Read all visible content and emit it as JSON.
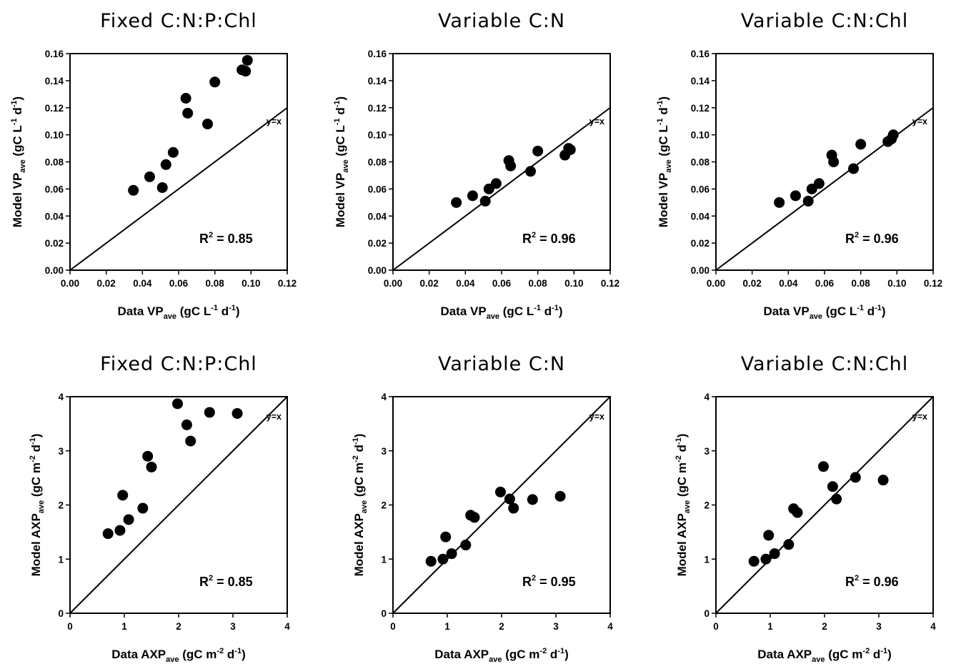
{
  "chart_data": [
    {
      "type": "scatter",
      "title": "Fixed C:N:P:Chl",
      "xlabel": {
        "main": "Data VP",
        "sub": "ave",
        "unit_pre": "(gC L",
        "sup1": "-1",
        "unit_mid": " d",
        "sup2": "-1",
        "unit_post": ")"
      },
      "ylabel": {
        "main": "Model VP",
        "sub": "ave",
        "unit_pre": "(gC L",
        "sup1": "-1",
        "unit_mid": " d",
        "sup2": "-1",
        "unit_post": ")"
      },
      "xlim": [
        0,
        0.12
      ],
      "ylim": [
        0,
        0.16
      ],
      "xticks": [
        "0.00",
        "0.02",
        "0.04",
        "0.06",
        "0.08",
        "0.10",
        "0.12"
      ],
      "yticks": [
        "0.00",
        "0.02",
        "0.04",
        "0.06",
        "0.08",
        "0.10",
        "0.12",
        "0.14",
        "0.16"
      ],
      "r2_label": "R",
      "r2_sup": "2",
      "r2_value": " = 0.85",
      "line_label": "y=x",
      "points": [
        [
          0.035,
          0.059
        ],
        [
          0.044,
          0.069
        ],
        [
          0.051,
          0.061
        ],
        [
          0.053,
          0.078
        ],
        [
          0.057,
          0.087
        ],
        [
          0.064,
          0.127
        ],
        [
          0.065,
          0.116
        ],
        [
          0.076,
          0.108
        ],
        [
          0.08,
          0.139
        ],
        [
          0.095,
          0.148
        ],
        [
          0.097,
          0.147
        ],
        [
          0.098,
          0.155
        ]
      ]
    },
    {
      "type": "scatter",
      "title": "Variable C:N",
      "xlabel": {
        "main": "Data VP",
        "sub": "ave",
        "unit_pre": "(gC L",
        "sup1": "-1",
        "unit_mid": " d",
        "sup2": "-1",
        "unit_post": ")"
      },
      "ylabel": {
        "main": "Model VP",
        "sub": "ave",
        "unit_pre": "(gC L",
        "sup1": "-1",
        "unit_mid": " d",
        "sup2": "-1",
        "unit_post": ")"
      },
      "xlim": [
        0,
        0.12
      ],
      "ylim": [
        0,
        0.16
      ],
      "xticks": [
        "0.00",
        "0.02",
        "0.04",
        "0.06",
        "0.08",
        "0.10",
        "0.12"
      ],
      "yticks": [
        "0.00",
        "0.02",
        "0.04",
        "0.06",
        "0.08",
        "0.10",
        "0.12",
        "0.14",
        "0.16"
      ],
      "r2_label": "R",
      "r2_sup": "2",
      "r2_value": " = 0.96",
      "line_label": "y=x",
      "points": [
        [
          0.035,
          0.05
        ],
        [
          0.044,
          0.055
        ],
        [
          0.051,
          0.051
        ],
        [
          0.053,
          0.06
        ],
        [
          0.057,
          0.064
        ],
        [
          0.064,
          0.081
        ],
        [
          0.065,
          0.077
        ],
        [
          0.076,
          0.073
        ],
        [
          0.08,
          0.088
        ],
        [
          0.095,
          0.085
        ],
        [
          0.097,
          0.09
        ],
        [
          0.098,
          0.089
        ]
      ]
    },
    {
      "type": "scatter",
      "title": "Variable C:N:Chl",
      "xlabel": {
        "main": "Data VP",
        "sub": "ave",
        "unit_pre": "(gC L",
        "sup1": "-1",
        "unit_mid": " d",
        "sup2": "-1",
        "unit_post": ")"
      },
      "ylabel": {
        "main": "Model VP",
        "sub": "ave",
        "unit_pre": "(gC L",
        "sup1": "-1",
        "unit_mid": " d",
        "sup2": "-1",
        "unit_post": ")"
      },
      "xlim": [
        0,
        0.12
      ],
      "ylim": [
        0,
        0.16
      ],
      "xticks": [
        "0.00",
        "0.02",
        "0.04",
        "0.06",
        "0.08",
        "0.10",
        "0.12"
      ],
      "yticks": [
        "0.00",
        "0.02",
        "0.04",
        "0.06",
        "0.08",
        "0.10",
        "0.12",
        "0.14",
        "0.16"
      ],
      "r2_label": "R",
      "r2_sup": "2",
      "r2_value": " = 0.96",
      "line_label": "y=x",
      "points": [
        [
          0.035,
          0.05
        ],
        [
          0.044,
          0.055
        ],
        [
          0.051,
          0.051
        ],
        [
          0.053,
          0.06
        ],
        [
          0.057,
          0.064
        ],
        [
          0.064,
          0.085
        ],
        [
          0.065,
          0.08
        ],
        [
          0.076,
          0.075
        ],
        [
          0.08,
          0.093
        ],
        [
          0.095,
          0.095
        ],
        [
          0.097,
          0.097
        ],
        [
          0.098,
          0.1
        ]
      ]
    },
    {
      "type": "scatter",
      "title": "Fixed C:N:P:Chl",
      "xlabel": {
        "main": "Data AXP",
        "sub": "ave",
        "unit_pre": "(gC m",
        "sup1": "-2",
        "unit_mid": " d",
        "sup2": "-1",
        "unit_post": ")"
      },
      "ylabel": {
        "main": "Model AXP",
        "sub": "ave",
        "unit_pre": "(gC m",
        "sup1": "-2",
        "unit_mid": " d",
        "sup2": "-1",
        "unit_post": ")"
      },
      "xlim": [
        0,
        4
      ],
      "ylim": [
        0,
        4
      ],
      "xticks": [
        "0",
        "1",
        "2",
        "3",
        "4"
      ],
      "yticks": [
        "0",
        "1",
        "2",
        "3",
        "4"
      ],
      "r2_label": "R",
      "r2_sup": "2",
      "r2_value": " = 0.85",
      "line_label": "y=x",
      "points": [
        [
          0.7,
          1.47
        ],
        [
          0.92,
          1.53
        ],
        [
          0.97,
          2.18
        ],
        [
          1.08,
          1.73
        ],
        [
          1.34,
          1.94
        ],
        [
          1.43,
          2.9
        ],
        [
          1.5,
          2.7
        ],
        [
          1.98,
          3.87
        ],
        [
          2.15,
          3.48
        ],
        [
          2.22,
          3.18
        ],
        [
          2.57,
          3.71
        ],
        [
          3.08,
          3.69
        ]
      ]
    },
    {
      "type": "scatter",
      "title": "Variable C:N",
      "xlabel": {
        "main": "Data AXP",
        "sub": "ave",
        "unit_pre": "(gC m",
        "sup1": "-2",
        "unit_mid": " d",
        "sup2": "-1",
        "unit_post": ")"
      },
      "ylabel": {
        "main": "Model AXP",
        "sub": "ave",
        "unit_pre": "(gC m",
        "sup1": "-2",
        "unit_mid": " d",
        "sup2": "-1",
        "unit_post": ")"
      },
      "xlim": [
        0,
        4
      ],
      "ylim": [
        0,
        4
      ],
      "xticks": [
        "0",
        "1",
        "2",
        "3",
        "4"
      ],
      "yticks": [
        "0",
        "1",
        "2",
        "3",
        "4"
      ],
      "r2_label": "R",
      "r2_sup": "2",
      "r2_value": " = 0.95",
      "line_label": "y=x",
      "points": [
        [
          0.7,
          0.96
        ],
        [
          0.92,
          1.0
        ],
        [
          0.97,
          1.41
        ],
        [
          1.08,
          1.1
        ],
        [
          1.34,
          1.26
        ],
        [
          1.43,
          1.81
        ],
        [
          1.5,
          1.77
        ],
        [
          1.98,
          2.24
        ],
        [
          2.15,
          2.11
        ],
        [
          2.22,
          1.94
        ],
        [
          2.57,
          2.1
        ],
        [
          3.08,
          2.16
        ]
      ]
    },
    {
      "type": "scatter",
      "title": "Variable C:N:Chl",
      "xlabel": {
        "main": "Data AXP",
        "sub": "ave",
        "unit_pre": "(gC m",
        "sup1": "-2",
        "unit_mid": " d",
        "sup2": "-1",
        "unit_post": ")"
      },
      "ylabel": {
        "main": "Model AXP",
        "sub": "ave",
        "unit_pre": "(gC m",
        "sup1": "-2",
        "unit_mid": " d",
        "sup2": "-1",
        "unit_post": ")"
      },
      "xlim": [
        0,
        4
      ],
      "ylim": [
        0,
        4
      ],
      "xticks": [
        "0",
        "1",
        "2",
        "3",
        "4"
      ],
      "yticks": [
        "0",
        "1",
        "2",
        "3",
        "4"
      ],
      "r2_label": "R",
      "r2_sup": "2",
      "r2_value": " = 0.96",
      "line_label": "y=x",
      "points": [
        [
          0.7,
          0.96
        ],
        [
          0.92,
          1.0
        ],
        [
          0.97,
          1.44
        ],
        [
          1.08,
          1.1
        ],
        [
          1.34,
          1.27
        ],
        [
          1.43,
          1.93
        ],
        [
          1.5,
          1.86
        ],
        [
          1.98,
          2.71
        ],
        [
          2.15,
          2.34
        ],
        [
          2.22,
          2.11
        ],
        [
          2.57,
          2.51
        ],
        [
          3.08,
          2.46
        ]
      ]
    }
  ]
}
